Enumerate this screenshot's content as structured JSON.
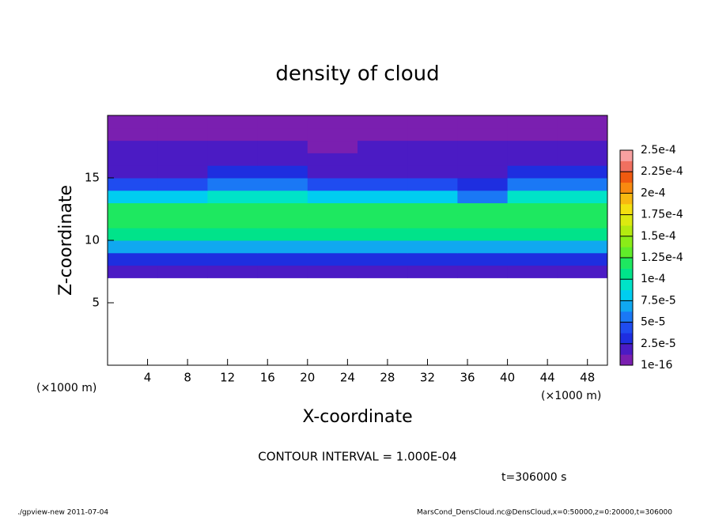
{
  "chart_data": {
    "type": "heatmap",
    "title": "density of cloud",
    "xlabel": "X-coordinate",
    "ylabel": "Z-coordinate",
    "x_unit_left": "(×1000 m)",
    "x_unit_right": "(×1000 m)",
    "contour_note": "CONTOUR INTERVAL = 1.000E-04",
    "time_note": "t=306000 s",
    "footer_left": "./gpview-new  2011-07-04",
    "footer_right": "MarsCond_DensCloud.nc@DensCloud,x=0:50000,z=0:20000,t=306000",
    "xlim": [
      0,
      50
    ],
    "ylim": [
      0,
      20
    ],
    "xticks": [
      4,
      8,
      12,
      16,
      20,
      24,
      28,
      32,
      36,
      40,
      44,
      48
    ],
    "yticks": [
      5,
      10,
      15
    ],
    "x": [
      2.5,
      7.5,
      12.5,
      17.5,
      22.5,
      27.5,
      32.5,
      37.5,
      42.5,
      47.5
    ],
    "y": [
      7.5,
      8.5,
      9.5,
      10.5,
      11.5,
      12.5,
      13.5,
      14.5,
      15.5,
      16.5,
      17.5,
      18.5,
      19.5
    ],
    "z": [
      [
        1.5e-05,
        1.5e-05,
        1.5e-05,
        1.5e-05,
        1.5e-05,
        1.5e-05,
        1.5e-05,
        1.5e-05,
        1.5e-05,
        1.5e-05
      ],
      [
        3.5e-05,
        3.5e-05,
        3.5e-05,
        3.5e-05,
        3.5e-05,
        3.5e-05,
        3.5e-05,
        3.5e-05,
        3.5e-05,
        3.5e-05
      ],
      [
        7e-05,
        7e-05,
        7e-05,
        7e-05,
        7e-05,
        7e-05,
        7e-05,
        7e-05,
        7e-05,
        7e-05
      ],
      [
        0.000105,
        0.000105,
        0.000105,
        0.000105,
        0.000105,
        0.000105,
        0.000105,
        0.000105,
        0.000105,
        0.000105
      ],
      [
        0.00012,
        0.00012,
        0.00012,
        0.00012,
        0.00012,
        0.00012,
        0.00012,
        0.00012,
        0.00012,
        0.00012
      ],
      [
        0.000115,
        0.000115,
        0.000115,
        0.000115,
        0.000115,
        0.000115,
        0.000115,
        0.000115,
        0.000115,
        0.000115
      ],
      [
        8e-05,
        8e-05,
        0.0001,
        0.0001,
        8e-05,
        8e-05,
        8e-05,
        6e-05,
        0.0001,
        0.0001
      ],
      [
        4e-05,
        4e-05,
        6e-05,
        6e-05,
        4e-05,
        4e-05,
        4e-05,
        3e-05,
        6e-05,
        6e-05
      ],
      [
        2.5e-05,
        2.5e-05,
        3e-05,
        3e-05,
        2.5e-05,
        2.5e-05,
        2.5e-05,
        2.5e-05,
        3e-05,
        3e-05
      ],
      [
        2e-05,
        2e-05,
        2e-05,
        2e-05,
        2e-05,
        2e-05,
        2e-05,
        2e-05,
        2e-05,
        2e-05
      ],
      [
        1.5e-05,
        1.5e-05,
        1.5e-05,
        1.5e-05,
        1e-05,
        1.5e-05,
        1.5e-05,
        1.5e-05,
        1.5e-05,
        1.5e-05
      ],
      [
        1e-05,
        1e-05,
        1e-05,
        1e-05,
        1e-05,
        1e-05,
        1e-05,
        1e-05,
        1e-05,
        1e-05
      ],
      [
        8e-06,
        8e-06,
        8e-06,
        8e-06,
        8e-06,
        8e-06,
        8e-06,
        8e-06,
        8e-06,
        8e-06
      ]
    ],
    "colorbar_lim": [
      1e-16,
      0.00025
    ],
    "colorbar_ticks": [
      {
        "value": 1e-16,
        "label": "1e-16"
      },
      {
        "value": 2.5e-05,
        "label": "2.5e-5"
      },
      {
        "value": 5e-05,
        "label": "5e-5"
      },
      {
        "value": 7.5e-05,
        "label": "7.5e-5"
      },
      {
        "value": 0.0001,
        "label": "1e-4"
      },
      {
        "value": 0.000125,
        "label": "1.25e-4"
      },
      {
        "value": 0.00015,
        "label": "1.5e-4"
      },
      {
        "value": 0.000175,
        "label": "1.75e-4"
      },
      {
        "value": 0.0002,
        "label": "2e-4"
      },
      {
        "value": 0.000225,
        "label": "2.25e-4"
      },
      {
        "value": 0.00025,
        "label": "2.5e-4"
      }
    ],
    "colors": [
      "#7a1fb0",
      "#4b1bc4",
      "#1e2ee0",
      "#1f4cf0",
      "#1a78f5",
      "#10a8f0",
      "#00cdf0",
      "#00e3c8",
      "#00e38a",
      "#1ee860",
      "#60ec2a",
      "#8aec18",
      "#b4ea10",
      "#dcea10",
      "#f4e010",
      "#f8b810",
      "#f88a10",
      "#f05a10",
      "#f07060",
      "#f8a0a0"
    ]
  }
}
